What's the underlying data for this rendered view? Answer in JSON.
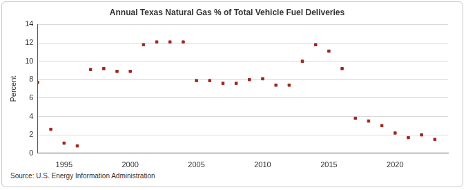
{
  "chart_data": {
    "type": "scatter",
    "title": "Annual Texas Natural Gas % of Total Vehicle Fuel Deliveries",
    "y_label": "Percent",
    "source": "Source: U.S. Energy Information Administration",
    "x": [
      1993,
      1994,
      1995,
      1996,
      1997,
      1998,
      1999,
      2000,
      2001,
      2002,
      2003,
      2004,
      2005,
      2006,
      2007,
      2008,
      2009,
      2010,
      2011,
      2012,
      2013,
      2014,
      2015,
      2016,
      2017,
      2018,
      2019,
      2020,
      2021,
      2022,
      2023
    ],
    "values": [
      7.7,
      2.6,
      1.1,
      0.8,
      9.1,
      9.2,
      8.9,
      8.9,
      11.8,
      12.1,
      12.1,
      12.1,
      7.9,
      7.9,
      7.6,
      7.6,
      8.0,
      8.1,
      7.4,
      7.4,
      10.0,
      11.8,
      11.1,
      9.2,
      3.8,
      3.5,
      3.0,
      2.2,
      1.7,
      2.0,
      1.5
    ],
    "color": "#a0281e",
    "marker": "square",
    "xlim": [
      1993,
      2024
    ],
    "xticks": [
      1995,
      2000,
      2005,
      2010,
      2015,
      2020
    ],
    "ylim": [
      0,
      14
    ],
    "yticks": [
      0,
      2,
      4,
      6,
      8,
      10,
      12,
      14
    ],
    "grid": true
  }
}
